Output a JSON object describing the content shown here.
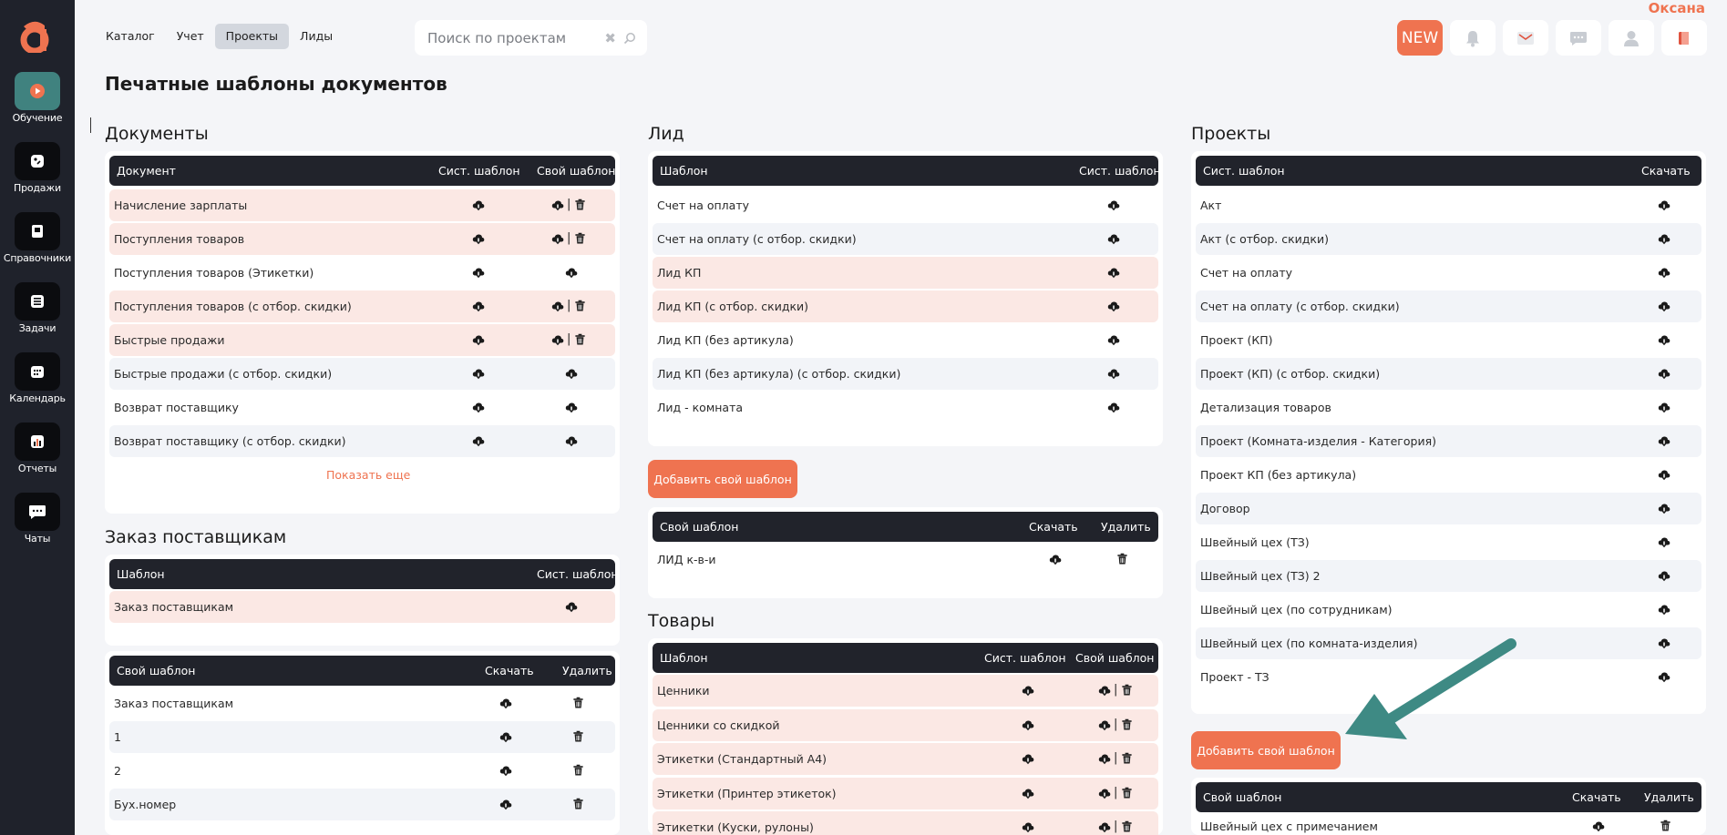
{
  "app": {
    "user_name": "Оксана",
    "new_badge": "NEW"
  },
  "sidebar": {
    "items": [
      {
        "label": "Обучение",
        "icon": "play-icon"
      },
      {
        "label": "Продажи",
        "icon": "tag-icon"
      },
      {
        "label": "Справочники",
        "icon": "book-icon"
      },
      {
        "label": "Задачи",
        "icon": "tasks-icon"
      },
      {
        "label": "Календарь",
        "icon": "calendar-icon"
      },
      {
        "label": "Отчеты",
        "icon": "report-icon"
      },
      {
        "label": "Чаты",
        "icon": "chat-icon"
      }
    ]
  },
  "topnav": {
    "items": [
      "Каталог",
      "Учет",
      "Проекты",
      "Лиды"
    ]
  },
  "search": {
    "placeholder": "Поиск по проектам"
  },
  "page_title": "Печатные шаблоны документов",
  "documents": {
    "title": "Документы",
    "headers": [
      "Документ",
      "Сист. шаблон",
      "Свой шаблон"
    ],
    "rows": [
      "Начисление зарплаты",
      "Поступления товаров",
      "Поступления товаров (Этикетки)",
      "Поступления товаров (с отбор. скидки)",
      "Быстрые продажи",
      "Быстрые продажи (с отбор. скидки)",
      "Возврат поставщику",
      "Возврат поставщику (с отбор. скидки)"
    ],
    "show_more": "Показать еще"
  },
  "supplier_order": {
    "title": "Заказ поставщикам",
    "headers": [
      "Шаблон",
      "Сист. шаблон"
    ],
    "rows": [
      "Заказ поставщикам"
    ]
  },
  "supplier_custom": {
    "headers": [
      "Свой шаблон",
      "Скачать",
      "Удалить"
    ],
    "rows": [
      "Заказ поставщикам",
      "1",
      "2",
      "Бух.номер"
    ]
  },
  "lead": {
    "title": "Лид",
    "headers": [
      "Шаблон",
      "Сист. шаблон"
    ],
    "rows": [
      "Счет на оплату",
      "Счет на оплату (с отбор. скидки)",
      "Лид КП",
      "Лид КП (с отбор. скидки)",
      "Лид КП (без артикула)",
      "Лид КП (без артикула) (с отбор. скидки)",
      "Лид - комната"
    ],
    "add_button": "Добавить свой шаблон"
  },
  "lead_custom": {
    "headers": [
      "Свой шаблон",
      "Скачать",
      "Удалить"
    ],
    "rows": [
      "ЛИД к-в-и"
    ]
  },
  "goods": {
    "title": "Товары",
    "headers": [
      "Шаблон",
      "Сист. шаблон",
      "Свой шаблон"
    ],
    "rows": [
      "Ценники",
      "Ценники со скидкой",
      "Этикетки (Стандартный А4)",
      "Этикетки (Принтер этикеток)",
      "Этикетки (Куски, рулоны)"
    ]
  },
  "projects": {
    "title": "Проекты",
    "headers": [
      "Сист. шаблон",
      "Скачать"
    ],
    "rows": [
      "Акт",
      "Акт (с отбор. скидки)",
      "Счет на оплату",
      "Счет на оплату (с отбор. скидки)",
      "Проект (КП)",
      "Проект (КП) (с отбор. скидки)",
      "Детализация товаров",
      "Проект (Комната-изделия - Категория)",
      "Проект КП (без артикула)",
      "Договор",
      "Швейный цех (ТЗ)",
      "Швейный цех (ТЗ) 2",
      "Швейный цех (по сотрудникам)",
      "Швейный цех (по комната-изделия)",
      "Проект - ТЗ"
    ],
    "add_button": "Добавить свой шаблон"
  },
  "projects_custom": {
    "headers": [
      "Свой шаблон",
      "Скачать",
      "Удалить"
    ],
    "rows": [
      "Швейный цех с примечанием"
    ]
  },
  "colors": {
    "accent": "#ef7350",
    "sidebar": "#1f222b",
    "header_row": "#21232b",
    "pink_row": "#fbe8e4",
    "teal": "#3e8a84"
  }
}
